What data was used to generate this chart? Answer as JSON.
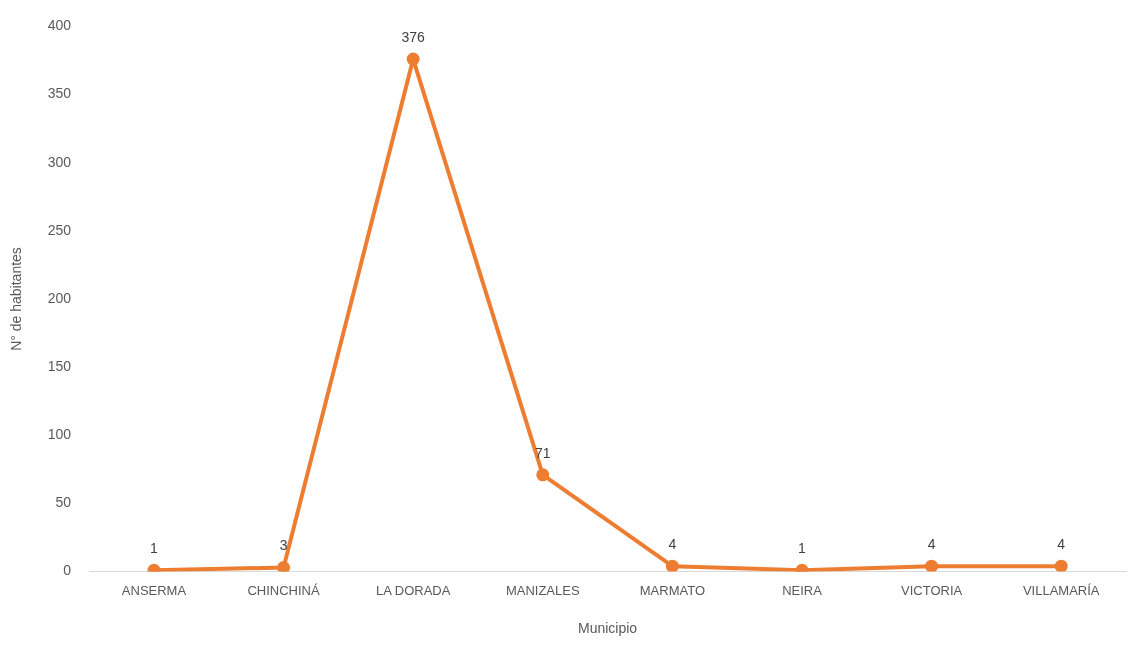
{
  "chart_data": {
    "type": "line",
    "xlabel": "Municipio",
    "ylabel": "N° de habitantes",
    "categories": [
      "ANSERMA",
      "CHINCHINÁ",
      "LA DORADA",
      "MANIZALES",
      "MARMATO",
      "NEIRA",
      "VICTORIA",
      "VILLAMARÍA"
    ],
    "series": [
      {
        "color": "#ed7d31",
        "values": [
          1,
          3,
          376,
          71,
          4,
          1,
          4,
          4
        ]
      }
    ],
    "ylim": [
      0,
      400
    ],
    "yticks": [
      0,
      50,
      100,
      150,
      200,
      250,
      300,
      350,
      400
    ],
    "grid": false,
    "legend": false,
    "marker": "circle",
    "line_style": "solid",
    "data_labels": true
  }
}
